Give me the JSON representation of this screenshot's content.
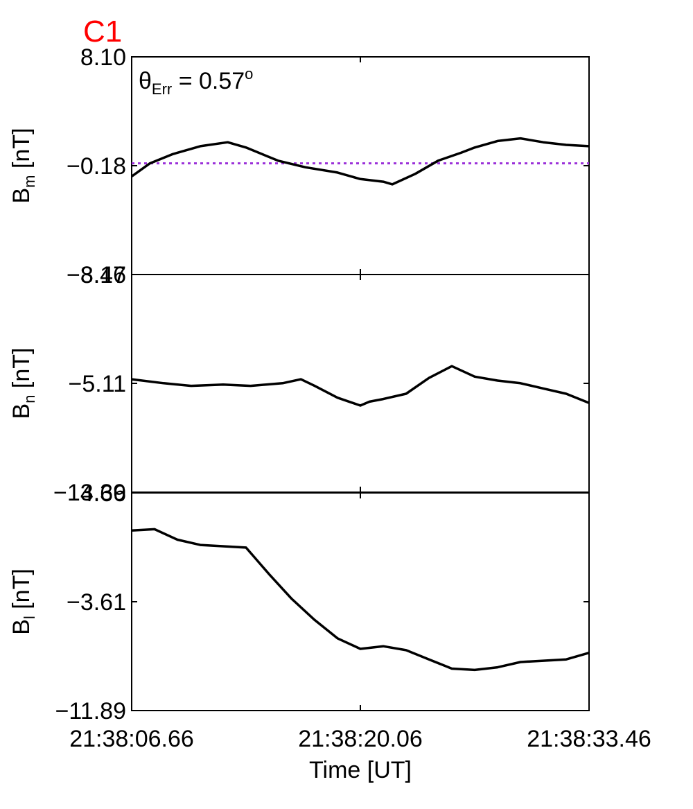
{
  "chart_data": {
    "type": "line",
    "title": "C1",
    "title_color": "#ff0000",
    "line_color": "#000000",
    "reference_color": "#9b30d9",
    "xlabel": "Time [UT]",
    "xticks": [
      "21:38:06.66",
      "21:38:20.06",
      "21:38:33.46"
    ],
    "xlim": [
      0,
      1
    ],
    "panels": [
      {
        "ylabel_main": "B",
        "ylabel_sub": "m",
        "ylabel_unit": " [nT]",
        "ylim": [
          -8.46,
          8.1
        ],
        "yticks": [
          "8.10",
          "-0.18",
          "-8.46"
        ],
        "annotation_main": "θ",
        "annotation_sub": "Err",
        "annotation_rest": " =  0.57",
        "annotation_sup": "o",
        "reference_line": 0.0,
        "x": [
          0,
          0.04,
          0.09,
          0.15,
          0.21,
          0.25,
          0.32,
          0.38,
          0.45,
          0.5,
          0.55,
          0.57,
          0.62,
          0.67,
          0.72,
          0.75,
          0.8,
          0.85,
          0.9,
          0.95,
          1.0
        ],
        "y": [
          -1.0,
          0.0,
          0.7,
          1.3,
          1.6,
          1.2,
          0.2,
          -0.3,
          -0.7,
          -1.2,
          -1.4,
          -1.6,
          -0.8,
          0.2,
          0.8,
          1.2,
          1.7,
          1.9,
          1.6,
          1.4,
          1.3
        ]
      },
      {
        "ylabel_main": "B",
        "ylabel_sub": "n",
        "ylabel_unit": " [nT]",
        "ylim": [
          -13.39,
          3.17
        ],
        "yticks": [
          "3.17",
          "-5.11",
          "-13.39"
        ],
        "x": [
          0,
          0.07,
          0.13,
          0.2,
          0.26,
          0.33,
          0.37,
          0.4,
          0.45,
          0.5,
          0.52,
          0.55,
          0.6,
          0.65,
          0.7,
          0.75,
          0.8,
          0.85,
          0.9,
          0.95,
          1.0
        ],
        "y": [
          -4.8,
          -5.1,
          -5.3,
          -5.2,
          -5.3,
          -5.1,
          -4.8,
          -5.3,
          -6.2,
          -6.8,
          -6.5,
          -6.3,
          -5.9,
          -4.7,
          -3.8,
          -4.6,
          -4.9,
          -5.1,
          -5.5,
          -5.9,
          -6.6
        ]
      },
      {
        "ylabel_main": "B",
        "ylabel_sub": "l",
        "ylabel_unit": " [nT]",
        "ylim": [
          -11.89,
          4.66
        ],
        "yticks": [
          "4.66",
          "-3.61",
          "-11.89"
        ],
        "x": [
          0,
          0.05,
          0.1,
          0.15,
          0.2,
          0.25,
          0.3,
          0.35,
          0.4,
          0.45,
          0.5,
          0.55,
          0.6,
          0.65,
          0.7,
          0.75,
          0.8,
          0.85,
          0.9,
          0.95,
          1.0
        ],
        "y": [
          1.8,
          1.9,
          1.1,
          0.7,
          0.6,
          0.5,
          -1.5,
          -3.4,
          -5.0,
          -6.4,
          -7.2,
          -7.0,
          -7.3,
          -8.0,
          -8.7,
          -8.8,
          -8.6,
          -8.2,
          -8.1,
          -8.0,
          -7.5
        ]
      }
    ]
  }
}
